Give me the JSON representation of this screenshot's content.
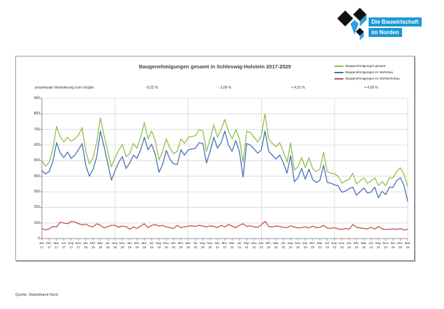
{
  "logo": {
    "line1": "Die Bauwirtschaft",
    "line2": "im Norden",
    "badge_color": "#1b99d5",
    "cube_black": "#111111",
    "cube_blue": "#29a3e0"
  },
  "source": "Quelle: Statistikamt Nord",
  "chart_data": {
    "type": "line",
    "title": "Baugenehmigungen gesamt in Schleswig-Holstein 2017-2025",
    "annotation_label": "prozentuale Veränderung zum Vorjahr:",
    "annotations": [
      "- 8,22 %",
      "- 3,09 %",
      "+ 4,51 %",
      "+ 4,09 %"
    ],
    "ylim": [
      0,
      900
    ],
    "yticks": [
      900,
      800,
      700,
      600,
      500,
      400,
      300,
      200,
      100,
      0
    ],
    "grid": true,
    "legend_position": "top-right",
    "grid_color": "#d6d6d6",
    "axis_color": "#8c8c8c",
    "x_tick_months": [
      "Jan.",
      "Mrz.",
      "Mai.",
      "Jul.",
      "Sep.",
      "Nov.",
      "Jan.",
      "Mrz.",
      "Mai.",
      "Jul.",
      "Sep.",
      "Nov.",
      "Jan.",
      "Mrz.",
      "Mai.",
      "Jul.",
      "Sep.",
      "Nov.",
      "Jan.",
      "Mrz.",
      "Mai.",
      "Jul.",
      "Sep.",
      "Nov.",
      "Jan.",
      "Mrz.",
      "Mai.",
      "Jul.",
      "Sep.",
      "Nov.",
      "Jan.",
      "Mrz.",
      "Mai.",
      "Jul.",
      "Sep.",
      "Nov.",
      "Jan.",
      "Mrz.",
      "Mai.",
      "Jul.",
      "Sep.",
      "Nov.",
      "Jan.",
      "Mrz.",
      "Mai.",
      "Jul.",
      "Sep.",
      "Nov.",
      "Jan.",
      "Mrz.",
      "Mai."
    ],
    "x_tick_years": [
      "17",
      "17",
      "17",
      "17",
      "17",
      "17",
      "18",
      "18",
      "18",
      "18",
      "18",
      "18",
      "19",
      "19",
      "19",
      "19",
      "19",
      "19",
      "20",
      "20",
      "20",
      "20",
      "20",
      "20",
      "21",
      "21",
      "21",
      "21",
      "21",
      "21",
      "22",
      "22",
      "22",
      "22",
      "22",
      "22",
      "23",
      "23",
      "23",
      "23",
      "23",
      "23",
      "24",
      "24",
      "24",
      "24",
      "24",
      "24",
      "25",
      "25",
      "25"
    ],
    "series": [
      {
        "name": "Baugenehmigungen gesamt",
        "color": "#94be4a",
        "values": [
          500,
          465,
          490,
          575,
          720,
          655,
          620,
          650,
          625,
          640,
          665,
          713,
          560,
          480,
          520,
          620,
          775,
          660,
          560,
          460,
          520,
          565,
          605,
          525,
          545,
          610,
          580,
          650,
          745,
          640,
          690,
          630,
          505,
          560,
          640,
          580,
          545,
          560,
          640,
          610,
          650,
          655,
          660,
          700,
          690,
          560,
          640,
          730,
          650,
          700,
          765,
          690,
          640,
          700,
          640,
          490,
          690,
          680,
          650,
          620,
          660,
          800,
          640,
          610,
          590,
          615,
          560,
          490,
          615,
          440,
          460,
          520,
          455,
          520,
          450,
          430,
          445,
          555,
          430,
          420,
          415,
          400,
          355,
          370,
          380,
          420,
          350,
          370,
          390,
          355,
          370,
          390,
          340,
          365,
          340,
          390,
          390,
          430,
          455,
          410,
          335
        ]
      },
      {
        "name": "Baugenehmigungen im Wohnbau",
        "color": "#4472b4",
        "values": [
          435,
          415,
          430,
          495,
          615,
          550,
          520,
          555,
          515,
          535,
          570,
          610,
          470,
          400,
          445,
          525,
          690,
          590,
          485,
          375,
          435,
          490,
          525,
          450,
          485,
          535,
          515,
          570,
          650,
          570,
          605,
          540,
          425,
          475,
          565,
          510,
          480,
          475,
          570,
          535,
          570,
          575,
          580,
          615,
          610,
          485,
          560,
          650,
          580,
          615,
          690,
          600,
          560,
          630,
          555,
          395,
          610,
          600,
          575,
          548,
          570,
          690,
          560,
          535,
          510,
          535,
          488,
          420,
          533,
          365,
          390,
          450,
          380,
          445,
          380,
          360,
          373,
          470,
          362,
          355,
          345,
          338,
          297,
          305,
          320,
          330,
          278,
          302,
          325,
          293,
          298,
          330,
          262,
          303,
          282,
          330,
          328,
          372,
          390,
          340,
          240
        ]
      },
      {
        "name": "Baugenehmigungen im Nichtwohnbau",
        "color": "#c0504d",
        "values": [
          65,
          55,
          62,
          78,
          75,
          105,
          100,
          95,
          110,
          108,
          95,
          88,
          92,
          80,
          76,
          95,
          85,
          68,
          76,
          85,
          85,
          72,
          80,
          76,
          60,
          75,
          65,
          80,
          95,
          70,
          85,
          90,
          80,
          85,
          75,
          70,
          65,
          85,
          70,
          75,
          80,
          82,
          78,
          85,
          80,
          75,
          82,
          78,
          70,
          85,
          75,
          90,
          80,
          70,
          85,
          95,
          78,
          82,
          75,
          72,
          88,
          110,
          78,
          75,
          80,
          78,
          72,
          70,
          82,
          74,
          68,
          70,
          75,
          68,
          80,
          70,
          72,
          85,
          68,
          65,
          70,
          62,
          58,
          65,
          60,
          90,
          72,
          68,
          65,
          62,
          72,
          60,
          78,
          62,
          58,
          60,
          62,
          58,
          65,
          55,
          60
        ]
      }
    ]
  }
}
